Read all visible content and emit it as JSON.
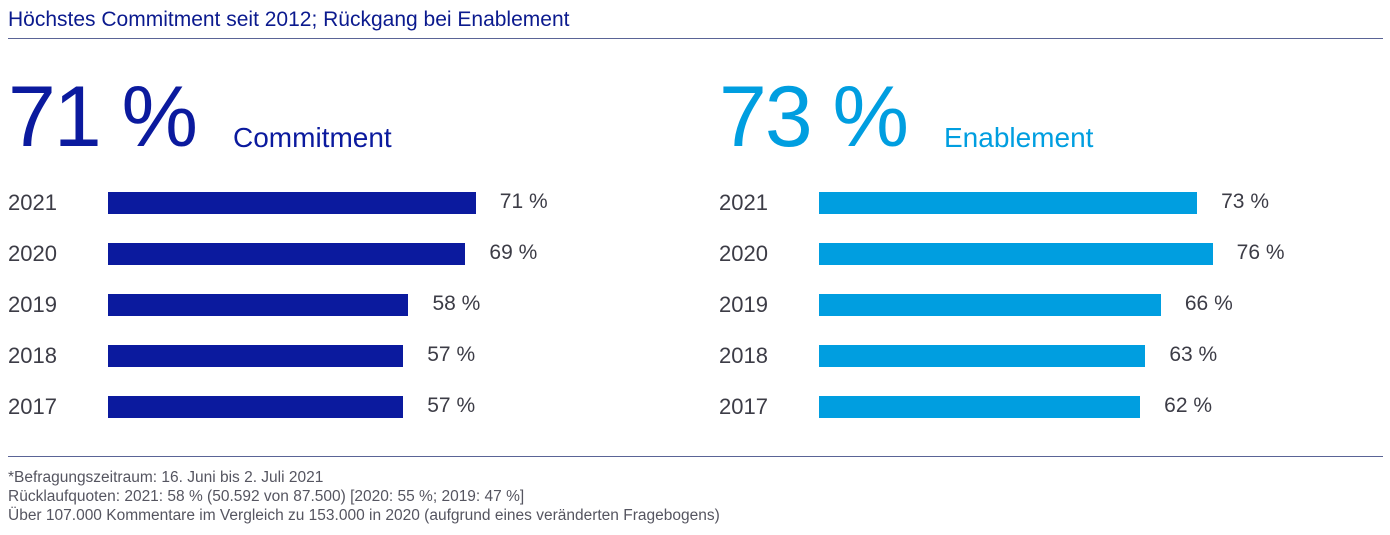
{
  "header": {
    "title": "Höchstes Commitment seit 2012; Rückgang bei  Enablement"
  },
  "colors": {
    "commitment": "#0b1a9e",
    "enablement": "#009ee0",
    "title": "#0b1a8e"
  },
  "chart_data": [
    {
      "type": "bar",
      "orientation": "horizontal",
      "title": "Commitment",
      "headline_value": "71 %",
      "categories": [
        "2021",
        "2020",
        "2019",
        "2018",
        "2017"
      ],
      "values": [
        71,
        69,
        58,
        57,
        57
      ],
      "labels": [
        "71 %",
        "69 %",
        "58 %",
        "57 %",
        "57 %"
      ],
      "xlim": [
        0,
        100
      ],
      "color": "#0b1a9e"
    },
    {
      "type": "bar",
      "orientation": "horizontal",
      "title": "Enablement",
      "headline_value": "73 %",
      "categories": [
        "2021",
        "2020",
        "2019",
        "2018",
        "2017"
      ],
      "values": [
        73,
        76,
        66,
        63,
        62
      ],
      "labels": [
        "73 %",
        "76 %",
        "66 %",
        "63 %",
        "62 %"
      ],
      "xlim": [
        0,
        100
      ],
      "color": "#009ee0"
    }
  ],
  "footnotes": [
    "*Befragungszeitraum: 16. Juni bis 2. Juli 2021",
    "Rücklaufquoten: 2021: 58 % (50.592 von 87.500) [2020: 55 %; 2019: 47 %]",
    "Über 107.000 Kommentare im Vergleich zu 153.000 in 2020 (aufgrund eines veränderten Fragebogens)"
  ]
}
